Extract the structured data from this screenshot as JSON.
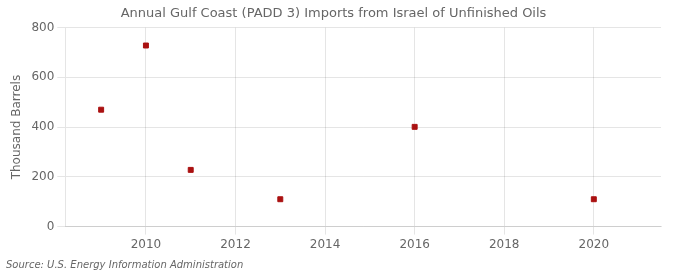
{
  "chart_data": {
    "type": "scatter",
    "title": "Annual Gulf Coast (PADD 3) Imports from Israel of Unfinished Oils",
    "ylabel": "Thousand Barrels",
    "annotation": "Source: U.S. Energy Information Administration",
    "x": [
      2009,
      2010,
      2011,
      2013,
      2016,
      2020
    ],
    "values": [
      470,
      728,
      228,
      110,
      401,
      110
    ],
    "color": "#aa1111",
    "marker": "square",
    "xlim": [
      2008.2,
      2021.5
    ],
    "ylim": [
      0,
      800
    ],
    "xticks": [
      2010,
      2012,
      2014,
      2016,
      2018,
      2020
    ],
    "yticks": [
      0,
      200,
      400,
      600,
      800
    ],
    "grid": true
  }
}
